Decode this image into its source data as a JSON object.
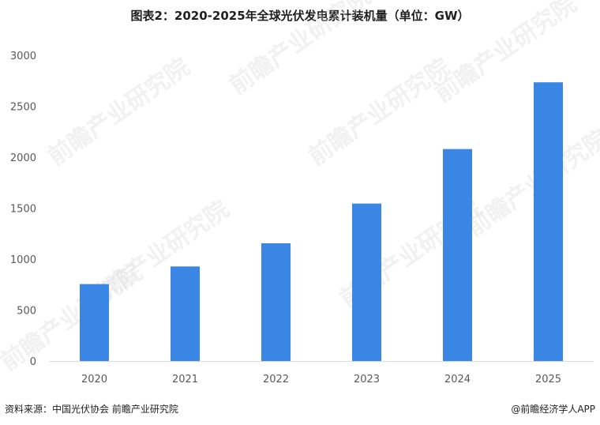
{
  "chart_data": {
    "type": "bar",
    "title": "图表2：2020-2025年全球光伏发电累计装机量（单位：GW）",
    "categories": [
      "2020",
      "2021",
      "2022",
      "2023",
      "2024",
      "2025"
    ],
    "values": [
      755,
      928,
      1155,
      1545,
      2080,
      2735
    ],
    "ylim": [
      0,
      3000
    ],
    "yticks": [
      0,
      500,
      1000,
      1500,
      2000,
      2500,
      3000
    ],
    "grid": false,
    "xlabel": "",
    "ylabel": "",
    "bar_color": "#3A86E5"
  },
  "footer": {
    "source": "资料来源：中国光伏协会 前瞻产业研究院",
    "brand": "@前瞻经济学人APP"
  },
  "watermark": {
    "text": "前瞻产业研究院"
  }
}
